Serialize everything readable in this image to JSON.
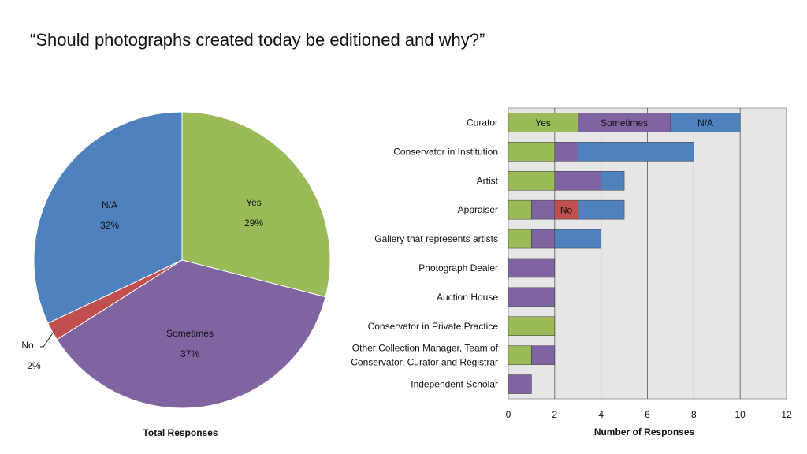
{
  "slide": {
    "title": "“Should photographs created today be editioned and why?”"
  },
  "colors": {
    "yes": "#9bbb59",
    "sometimes": "#8064a2",
    "no": "#c0504d",
    "na": "#4f81bd",
    "plot_bg": "#e6e6e6",
    "grid": "#555555"
  },
  "chart_data": [
    {
      "type": "pie",
      "title": "",
      "xlabel": "Total Responses",
      "slices": [
        {
          "key": "yes",
          "label": "Yes",
          "pct_label": "29%",
          "value": 29
        },
        {
          "key": "sometimes",
          "label": "Sometimes",
          "pct_label": "37%",
          "value": 37
        },
        {
          "key": "no",
          "label": "No",
          "pct_label": "2%",
          "value": 2
        },
        {
          "key": "na",
          "label": "N/A",
          "pct_label": "32%",
          "value": 32
        }
      ]
    },
    {
      "type": "bar",
      "orientation": "horizontal",
      "stacked": true,
      "xlabel": "Number of Responses",
      "xlim": [
        0,
        12
      ],
      "xticks": [
        0,
        2,
        4,
        6,
        8,
        10,
        12
      ],
      "grid": true,
      "categories": [
        "Curator",
        "Conservator in Institution",
        "Artist",
        "Appraiser",
        "Gallery that represents artists",
        "Photograph Dealer",
        "Auction House",
        "Conservator in Private Practice",
        "Other:Collection Manager, Team of\nConservator, Curator and Registrar",
        "Independent Scholar"
      ],
      "series": [
        {
          "name": "Yes",
          "key": "yes",
          "values": [
            3,
            2,
            2,
            1,
            1,
            0,
            0,
            2,
            1,
            0
          ]
        },
        {
          "name": "Sometimes",
          "key": "sometimes",
          "values": [
            4,
            1,
            2,
            1,
            1,
            2,
            2,
            0,
            1,
            1
          ]
        },
        {
          "name": "No",
          "key": "no",
          "values": [
            0,
            0,
            0,
            1,
            0,
            0,
            0,
            0,
            0,
            0
          ]
        },
        {
          "name": "N/A",
          "key": "na",
          "values": [
            3,
            5,
            1,
            2,
            2,
            0,
            0,
            0,
            0,
            0
          ]
        }
      ]
    }
  ]
}
